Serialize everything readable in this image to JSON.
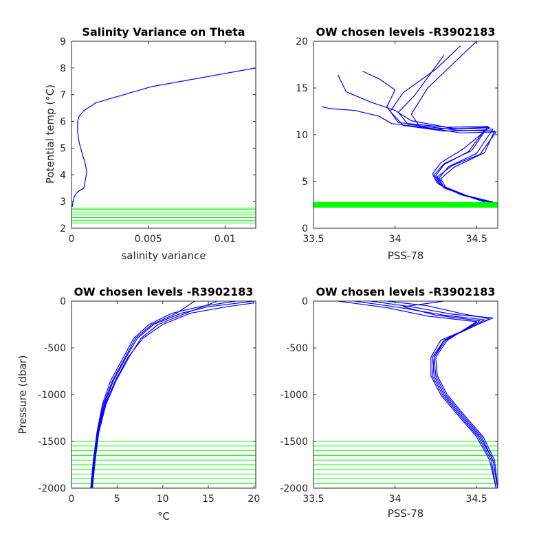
{
  "figure": {
    "background": "#ffffff",
    "colors": {
      "profile": "#0000ff",
      "levels": "#00ff00",
      "axis": "#262626"
    }
  },
  "chart_data": [
    {
      "id": "salvar",
      "type": "line",
      "title": "Salinity Variance on Theta",
      "xlabel": "salinity variance",
      "ylabel": "Potential temp (°C)",
      "xlim": [
        0,
        0.012
      ],
      "ylim": [
        2,
        9
      ],
      "xticks": [
        0,
        0.005,
        0.01
      ],
      "xtick_labels": [
        "0",
        "0.005",
        "0.01"
      ],
      "yticks": [
        2,
        3,
        4,
        5,
        6,
        7,
        8,
        9
      ],
      "ytick_labels": [
        "2",
        "3",
        "4",
        "5",
        "6",
        "7",
        "8",
        "9"
      ],
      "grid": false,
      "series": [
        {
          "x": [
            5e-05,
            0.0001,
            0.0002,
            0.0003,
            0.0005,
            0.0008,
            0.0009,
            0.001,
            0.0009,
            0.0007,
            0.0005,
            0.0004,
            0.0004,
            0.0005,
            0.0008,
            0.0016,
            0.0052,
            0.012
          ],
          "y": [
            2.8,
            3.0,
            3.2,
            3.3,
            3.4,
            3.5,
            3.8,
            4.1,
            4.4,
            4.8,
            5.2,
            5.6,
            6.0,
            6.2,
            6.4,
            6.7,
            7.3,
            8.0
          ]
        }
      ],
      "level_lines": [
        2.2,
        2.3,
        2.4,
        2.5,
        2.6,
        2.7,
        2.75
      ]
    },
    {
      "id": "theta_sal",
      "type": "line",
      "title": "OW chosen levels -R3902183",
      "xlabel": "PSS-78",
      "ylabel": "",
      "xlim": [
        33.5,
        34.63
      ],
      "ylim": [
        0,
        20
      ],
      "xticks": [
        33.5,
        34,
        34.5
      ],
      "xtick_labels": [
        "33.5",
        "34",
        "34.5"
      ],
      "yticks": [
        0,
        5,
        10,
        15,
        20
      ],
      "ytick_labels": [
        "0",
        "5",
        "10",
        "15",
        "20"
      ],
      "grid": false,
      "series": [
        {
          "x": [
            34.58,
            34.4,
            34.28,
            34.25,
            34.3,
            34.45,
            34.55,
            34.3,
            34.05,
            33.97,
            34.05,
            34.25,
            34.4
          ],
          "y": [
            2.8,
            3.6,
            4.6,
            5.6,
            6.8,
            8.2,
            10.5,
            10.4,
            11.0,
            12.5,
            14.5,
            17.0,
            19.5
          ]
        },
        {
          "x": [
            34.6,
            34.45,
            34.3,
            34.27,
            34.33,
            34.5,
            34.6,
            34.35,
            34.1,
            34.0,
            33.85,
            33.7,
            33.65
          ],
          "y": [
            2.8,
            3.4,
            4.3,
            5.4,
            6.6,
            8.0,
            10.6,
            10.7,
            11.5,
            12.6,
            13.5,
            14.6,
            16.4
          ]
        },
        {
          "x": [
            34.55,
            34.38,
            34.26,
            34.23,
            34.28,
            34.42,
            34.58,
            34.25,
            33.98,
            33.9,
            33.75,
            33.6,
            33.55
          ],
          "y": [
            2.8,
            3.8,
            4.8,
            5.8,
            7.0,
            8.5,
            10.8,
            10.6,
            11.2,
            12.0,
            12.6,
            12.8,
            13.0
          ]
        },
        {
          "x": [
            34.59,
            34.42,
            34.29,
            34.26,
            34.35,
            34.52,
            34.62,
            34.4,
            34.15,
            34.1,
            34.2,
            34.35,
            34.5
          ],
          "y": [
            2.8,
            3.5,
            4.5,
            5.5,
            6.7,
            7.9,
            10.3,
            10.2,
            10.9,
            12.2,
            15.0,
            17.5,
            20.0
          ]
        },
        {
          "x": [
            34.57,
            34.4,
            34.27,
            34.24,
            34.3,
            34.47,
            34.57,
            34.32,
            34.02,
            33.95,
            34.0,
            33.9,
            33.8
          ],
          "y": [
            2.8,
            3.7,
            4.7,
            5.7,
            6.9,
            8.3,
            10.9,
            10.8,
            11.3,
            13.0,
            14.8,
            16.0,
            16.8
          ]
        },
        {
          "x": [
            34.6,
            34.44,
            34.31,
            34.28,
            34.36,
            34.55,
            34.61,
            34.38,
            34.08,
            34.02,
            34.12,
            34.3
          ],
          "y": [
            2.8,
            3.5,
            4.4,
            5.3,
            6.5,
            8.1,
            10.4,
            10.5,
            11.1,
            12.4,
            14.2,
            18.5
          ]
        }
      ],
      "level_band": [
        2.2,
        2.8
      ]
    },
    {
      "id": "pres_temp",
      "type": "line",
      "title": "OW chosen levels -R3902183",
      "xlabel": "°C",
      "ylabel": "Pressure (dbar)",
      "xlim": [
        0,
        20.2
      ],
      "ylim": [
        -2000,
        0
      ],
      "xticks": [
        0,
        5,
        10,
        15,
        20
      ],
      "xtick_labels": [
        "0",
        "5",
        "10",
        "15",
        "20"
      ],
      "yticks": [
        -2000,
        -1500,
        -1000,
        -500,
        0
      ],
      "ytick_labels": [
        "-2000",
        "-1500",
        "-1000",
        "-500",
        "0"
      ],
      "grid": false,
      "series": [
        {
          "x": [
            2.2,
            2.5,
            2.9,
            3.6,
            4.6,
            6.0,
            7.2,
            9.0,
            12.0,
            15.0,
            20.0
          ],
          "y": [
            -2000,
            -1700,
            -1400,
            -1100,
            -850,
            -600,
            -400,
            -250,
            -130,
            -60,
            0
          ]
        },
        {
          "x": [
            2.3,
            2.6,
            3.0,
            3.8,
            4.9,
            6.3,
            7.6,
            9.5,
            12.5,
            16.0
          ],
          "y": [
            -2000,
            -1700,
            -1400,
            -1100,
            -850,
            -600,
            -400,
            -250,
            -130,
            0
          ]
        },
        {
          "x": [
            2.1,
            2.4,
            2.8,
            3.4,
            4.3,
            5.7,
            6.8,
            8.5,
            11.0,
            14.0,
            18.0
          ],
          "y": [
            -2000,
            -1700,
            -1400,
            -1100,
            -850,
            -600,
            -400,
            -250,
            -130,
            -60,
            0
          ]
        },
        {
          "x": [
            2.25,
            2.55,
            2.95,
            3.7,
            4.8,
            6.2,
            7.8,
            10.0,
            13.0,
            17.0,
            20.0
          ],
          "y": [
            -2000,
            -1700,
            -1400,
            -1100,
            -850,
            -600,
            -400,
            -250,
            -130,
            -60,
            -20
          ]
        },
        {
          "x": [
            2.15,
            2.45,
            2.85,
            3.5,
            4.5,
            5.9,
            7.0,
            8.8,
            11.5,
            13.5
          ],
          "y": [
            -2000,
            -1700,
            -1400,
            -1100,
            -850,
            -600,
            -400,
            -250,
            -130,
            0
          ]
        }
      ],
      "level_lines": [
        -1500,
        -1550,
        -1600,
        -1650,
        -1700,
        -1750,
        -1800,
        -1850,
        -1900,
        -1950
      ]
    },
    {
      "id": "pres_sal",
      "type": "line",
      "title": "OW chosen levels -R3902183",
      "xlabel": "PSS-78",
      "ylabel": "",
      "xlim": [
        33.5,
        34.63
      ],
      "ylim": [
        -2000,
        0
      ],
      "xticks": [
        33.5,
        34,
        34.5
      ],
      "xtick_labels": [
        "33.5",
        "34",
        "34.5"
      ],
      "yticks": [
        -2000,
        -1500,
        -1000,
        -500,
        0
      ],
      "ytick_labels": [
        "-2000",
        "-1500",
        "-1000",
        "-500",
        "0"
      ],
      "grid": false,
      "series": [
        {
          "x": [
            34.63,
            34.6,
            34.52,
            34.42,
            34.3,
            34.24,
            34.23,
            34.3,
            34.55,
            34.3,
            34.0,
            33.75
          ],
          "y": [
            -2000,
            -1700,
            -1450,
            -1250,
            -1000,
            -800,
            -600,
            -420,
            -200,
            -150,
            -60,
            0
          ]
        },
        {
          "x": [
            34.62,
            34.58,
            34.5,
            34.4,
            34.28,
            34.22,
            34.22,
            34.28,
            34.6,
            34.35,
            34.1,
            33.85
          ],
          "y": [
            -2000,
            -1700,
            -1450,
            -1250,
            -1000,
            -800,
            -600,
            -420,
            -180,
            -140,
            -60,
            0
          ]
        },
        {
          "x": [
            34.63,
            34.61,
            34.54,
            34.44,
            34.32,
            34.26,
            34.25,
            34.32,
            34.5,
            34.2,
            33.95,
            33.65
          ],
          "y": [
            -2000,
            -1700,
            -1450,
            -1250,
            -1000,
            -800,
            -600,
            -420,
            -220,
            -160,
            -70,
            0
          ]
        },
        {
          "x": [
            34.62,
            34.59,
            34.51,
            34.41,
            34.29,
            34.23,
            34.24,
            34.3,
            34.58,
            34.4,
            34.2,
            33.95
          ],
          "y": [
            -2000,
            -1700,
            -1450,
            -1250,
            -1000,
            -800,
            -600,
            -420,
            -190,
            -130,
            -50,
            0
          ]
        },
        {
          "x": [
            34.63,
            34.6,
            34.53,
            34.43,
            34.31,
            34.25,
            34.24,
            34.31,
            34.52,
            34.25,
            34.05,
            34.3
          ],
          "y": [
            -2000,
            -1700,
            -1450,
            -1250,
            -1000,
            -800,
            -600,
            -420,
            -210,
            -150,
            -60,
            0
          ]
        }
      ],
      "level_lines": [
        -1500,
        -1550,
        -1600,
        -1650,
        -1700,
        -1750,
        -1800,
        -1850,
        -1900,
        -1950
      ]
    }
  ]
}
